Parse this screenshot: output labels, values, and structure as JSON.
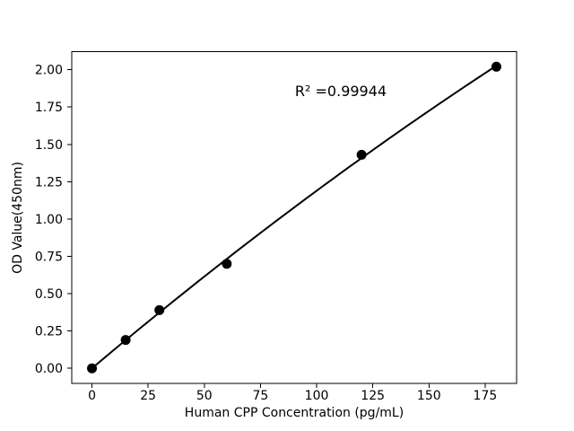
{
  "chart_data": {
    "type": "scatter",
    "title": "",
    "xlabel": "Human CPP Concentration (pg/mL)",
    "ylabel": "OD Value(450nm)",
    "annotation": "R² =0.99944",
    "r_squared": 0.99944,
    "x": [
      0,
      15,
      30,
      60,
      120,
      180
    ],
    "y": [
      0.0,
      0.19,
      0.39,
      0.7,
      1.43,
      2.02
    ],
    "fit": {
      "type": "quadratic",
      "coefficients": [
        0.000323,
        0.01268,
        -7.9051e-06
      ],
      "x_start": 0,
      "x_end": 180
    },
    "xticks": [
      0,
      25,
      50,
      75,
      100,
      125,
      150,
      175
    ],
    "yticks": [
      0.0,
      0.25,
      0.5,
      0.75,
      1.0,
      1.25,
      1.5,
      1.75,
      2.0
    ],
    "xlim": [
      -9,
      189
    ],
    "ylim": [
      -0.101,
      2.121
    ],
    "grid": false,
    "legend": "none",
    "marker_color": "#000000",
    "line_color": "#000000",
    "axis_color": "#000000",
    "background": "#ffffff"
  }
}
